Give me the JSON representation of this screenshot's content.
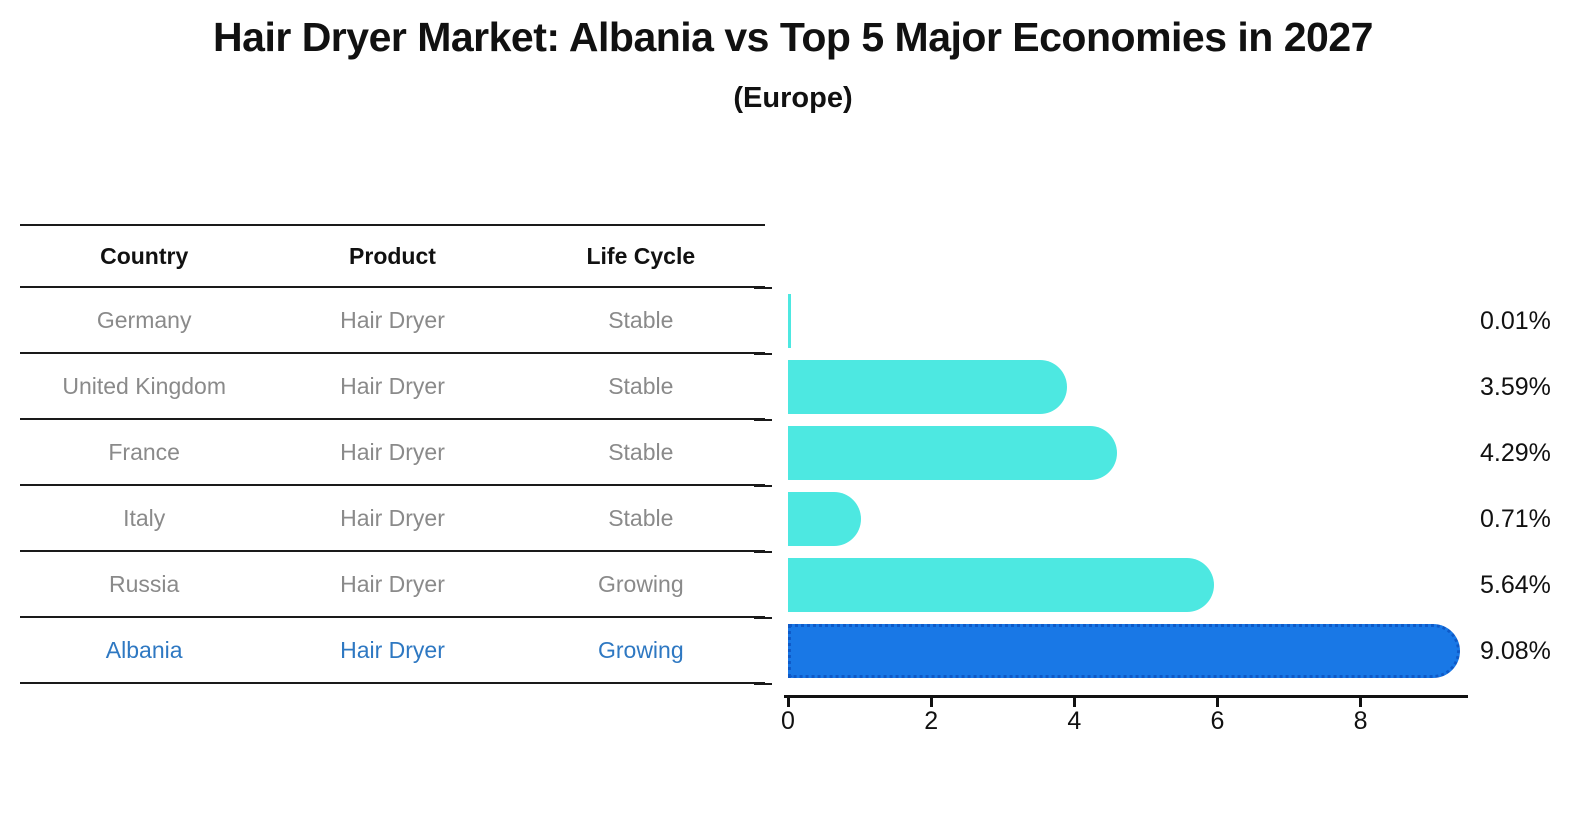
{
  "title": "Hair Dryer Market: Albania vs Top 5 Major Economies in 2027",
  "subtitle": "(Europe)",
  "table": {
    "headers": [
      "Country",
      "Product",
      "Life Cycle"
    ],
    "rows": [
      {
        "country": "Germany",
        "product": "Hair Dryer",
        "life_cycle": "Stable"
      },
      {
        "country": "United Kingdom",
        "product": "Hair Dryer",
        "life_cycle": "Stable"
      },
      {
        "country": "France",
        "product": "Hair Dryer",
        "life_cycle": "Stable"
      },
      {
        "country": "Italy",
        "product": "Hair Dryer",
        "life_cycle": "Stable"
      },
      {
        "country": "Russia",
        "product": "Hair Dryer",
        "life_cycle": "Growing"
      },
      {
        "country": "Albania",
        "product": "Hair Dryer",
        "life_cycle": "Growing"
      }
    ],
    "highlight_row_index": 5
  },
  "chart_data": {
    "type": "bar",
    "orientation": "horizontal",
    "categories": [
      "Germany",
      "United Kingdom",
      "France",
      "Italy",
      "Russia",
      "Albania"
    ],
    "values": [
      0.01,
      3.59,
      4.29,
      0.71,
      5.64,
      9.08
    ],
    "value_labels": [
      "0.01%",
      "3.59%",
      "4.29%",
      "0.71%",
      "5.64%",
      "9.08%"
    ],
    "x_ticks": [
      0,
      2,
      4,
      6,
      8
    ],
    "xlim": [
      0,
      9.5
    ],
    "grid": false,
    "legend": "none",
    "highlight_index": 5,
    "bar_color": "#4DE8E1",
    "highlight_bar_color": "#1978E6",
    "highlight_border_color": "#0E5AC8"
  },
  "colors": {
    "text": "#111111",
    "muted_text": "#8a8a8a",
    "highlight_text": "#2E78C2",
    "line": "#1a1a1a",
    "background": "#ffffff"
  }
}
